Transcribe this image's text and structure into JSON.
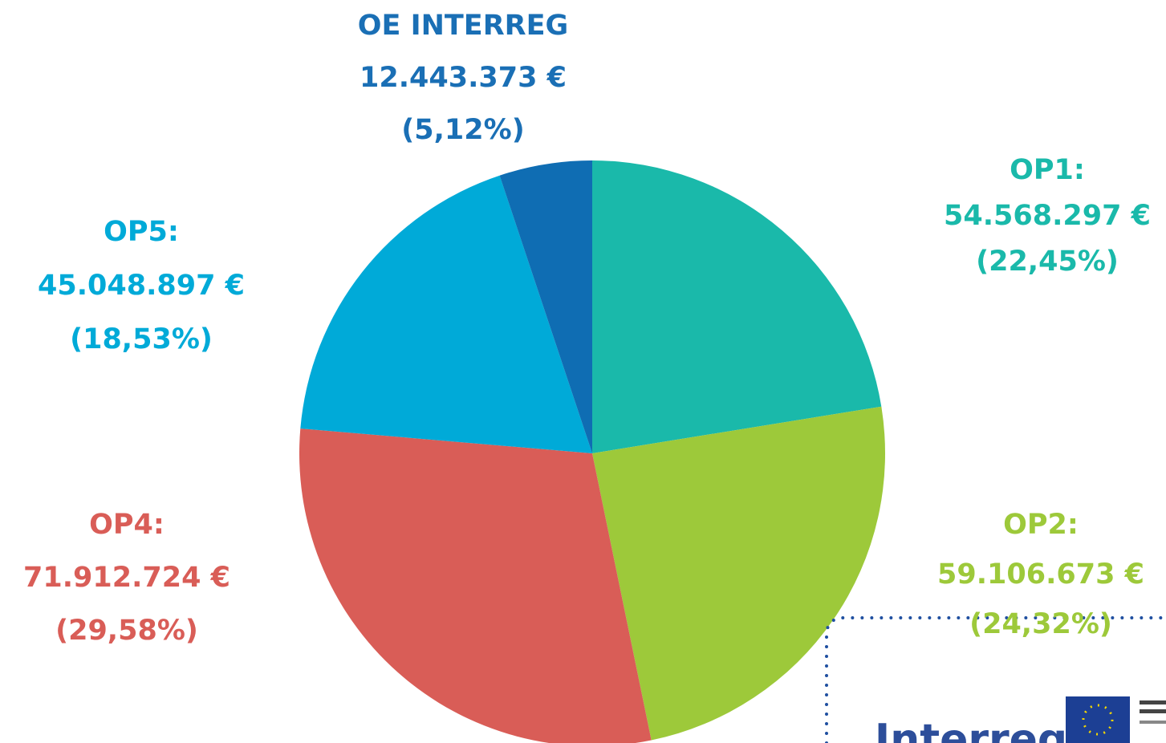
{
  "chart_data": {
    "type": "pie",
    "categories": [
      "OP1:",
      "OP2:",
      "OP4:",
      "OP5:",
      "OE INTERREG"
    ],
    "values": [
      54568297,
      59106673,
      71912724,
      45048897,
      12443373
    ],
    "value_labels": [
      "54.568.297  €",
      "59.106.673 €",
      "71.912.724 €",
      "45.048.897 €",
      "12.443.373 €"
    ],
    "percentages": [
      22.45,
      24.32,
      29.58,
      18.53,
      5.12
    ],
    "percentage_labels": [
      "(22,45%)",
      "(24,32%)",
      "(29,58%)",
      "(18,53%)",
      "(5,12%)"
    ],
    "colors": [
      "#1ab9aa",
      "#9dc93a",
      "#d95d57",
      "#00aad8",
      "#0f6db3"
    ]
  },
  "logo": {
    "text": "Interreg"
  }
}
